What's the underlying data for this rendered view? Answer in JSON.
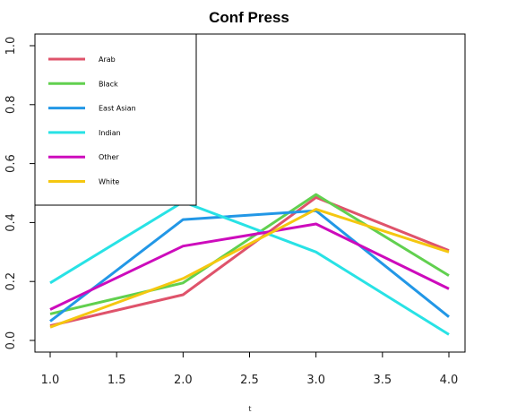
{
  "chart_data": {
    "type": "line",
    "title": "Conf Press",
    "xlabel": "t",
    "ylabel": "",
    "x": [
      1,
      2,
      3,
      4
    ],
    "xlim": [
      1,
      4
    ],
    "ylim": [
      0,
      1
    ],
    "xticks": [
      "1.0",
      "1.5",
      "2.0",
      "2.5",
      "3.0",
      "3.5",
      "4.0"
    ],
    "yticks": [
      "0.0",
      "0.2",
      "0.4",
      "0.6",
      "0.8",
      "1.0"
    ],
    "grid": false,
    "legend_position": "top-left",
    "series": [
      {
        "name": "Arab",
        "color": "#DF536B",
        "values": [
          0.05,
          0.155,
          0.485,
          0.305
        ]
      },
      {
        "name": "Black",
        "color": "#61D04F",
        "values": [
          0.09,
          0.195,
          0.495,
          0.22
        ]
      },
      {
        "name": "East Asian",
        "color": "#2297E6",
        "values": [
          0.065,
          0.41,
          0.44,
          0.08
        ]
      },
      {
        "name": "Indian",
        "color": "#28E2E5",
        "values": [
          0.195,
          0.47,
          0.3,
          0.02
        ]
      },
      {
        "name": "Other",
        "color": "#CD0BBC",
        "values": [
          0.105,
          0.32,
          0.395,
          0.175
        ]
      },
      {
        "name": "White",
        "color": "#F5C710",
        "values": [
          0.045,
          0.21,
          0.445,
          0.3
        ]
      }
    ]
  }
}
